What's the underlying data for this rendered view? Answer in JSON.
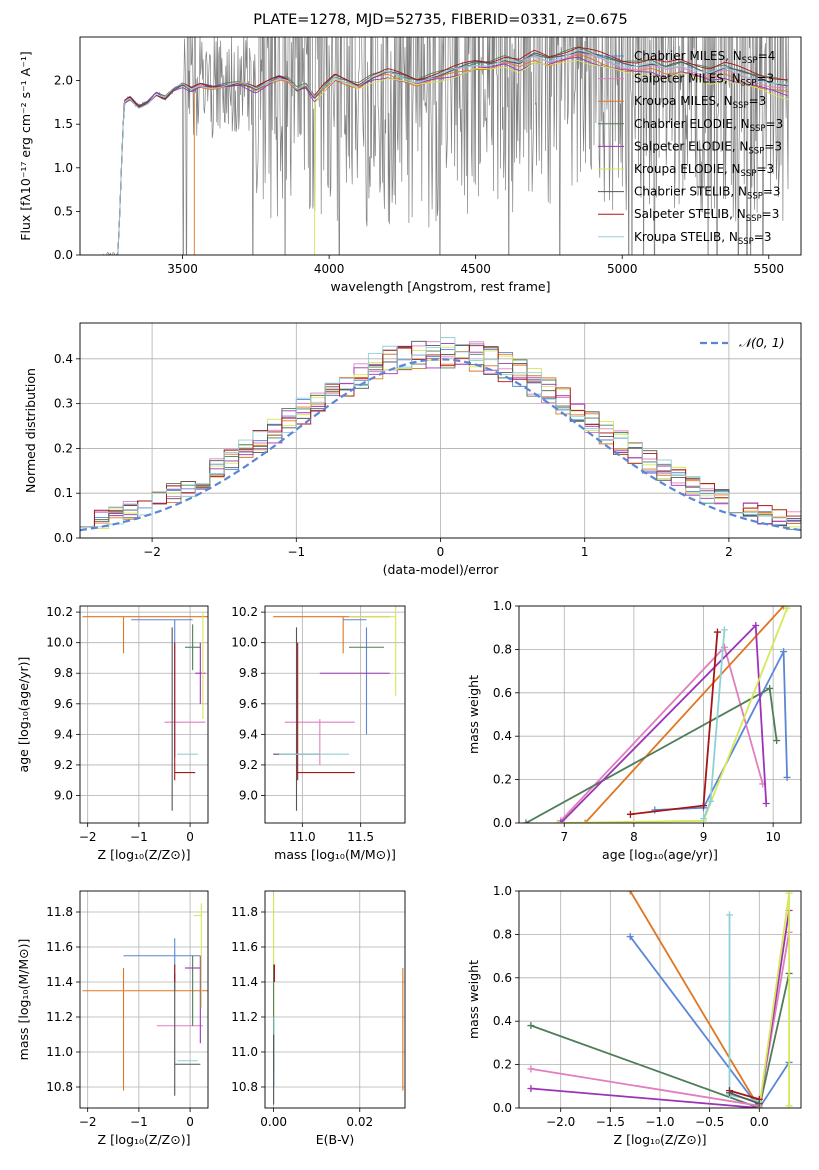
{
  "figure": {
    "title": "PLATE=1278, MJD=52735, FIBERID=0331, z=0.675"
  },
  "model_colors": {
    "Chabrier MILES": "#5b86d6",
    "Salpeter MILES": "#e07fbf",
    "Kroupa MILES": "#e07722",
    "Chabrier ELODIE": "#4f7d57",
    "Salpeter ELODIE": "#9b34b8",
    "Kroupa ELODIE": "#d6e85a",
    "Chabrier STELIB": "#555555",
    "Salpeter STELIB": "#a51616",
    "Kroupa STELIB": "#8fd0d8"
  },
  "chart_data": [
    {
      "type": "line",
      "title": "PLATE=1278, MJD=52735, FIBERID=0331, z=0.675",
      "xlabel": "wavelength [Angstrom, rest frame]",
      "ylabel": "Flux [fλ10⁻¹⁷ erg cm⁻² s⁻¹ A⁻¹]",
      "xlim": [
        3150,
        5610
      ],
      "ylim": [
        0,
        2.5
      ],
      "xticks": [
        3500,
        4000,
        4500,
        5000,
        5500
      ],
      "yticks": [
        0.0,
        0.5,
        1.0,
        1.5,
        2.0
      ],
      "grid": false,
      "legend_position": "right",
      "data_range": [
        3225,
        5570
      ],
      "model_knots": {
        "x": [
          3225,
          3280,
          3300,
          3320,
          3350,
          3380,
          3410,
          3440,
          3470,
          3500,
          3530,
          3560,
          3600,
          3650,
          3700,
          3750,
          3800,
          3830,
          3860,
          3890,
          3920,
          3950,
          3980,
          4020,
          4060,
          4100,
          4150,
          4200,
          4250,
          4300,
          4350,
          4400,
          4450,
          4500,
          4550,
          4600,
          4650,
          4700,
          4750,
          4800,
          4850,
          4900,
          4950,
          5000,
          5050,
          5100,
          5150,
          5200,
          5250,
          5300,
          5350,
          5400,
          5450,
          5500,
          5570
        ],
        "y": [
          0,
          0,
          1.75,
          1.8,
          1.7,
          1.75,
          1.85,
          1.8,
          1.9,
          1.95,
          1.9,
          1.95,
          1.93,
          1.95,
          1.97,
          1.9,
          2.0,
          2.05,
          2.02,
          1.9,
          1.95,
          1.8,
          1.92,
          2.05,
          2.0,
          1.95,
          2.05,
          2.1,
          2.05,
          2.0,
          2.05,
          2.1,
          2.15,
          2.2,
          2.2,
          2.25,
          2.2,
          2.3,
          2.25,
          2.3,
          2.35,
          2.3,
          2.25,
          2.2,
          2.18,
          2.2,
          2.15,
          2.2,
          2.15,
          2.1,
          2.15,
          2.1,
          2.05,
          2.0,
          1.95
        ]
      },
      "model_offsets": [
        0.0,
        -0.05,
        -0.1,
        0.03,
        -0.12,
        -0.15,
        0.0,
        0.05,
        -0.02
      ],
      "model_cuts": [
        {
          "model": "Chabrier MILES",
          "range": [
            3225,
            5570
          ]
        },
        {
          "model": "Salpeter MILES",
          "range": [
            3225,
            5570
          ]
        },
        {
          "model": "Kroupa MILES",
          "range": [
            3540,
            5570
          ]
        },
        {
          "model": "Chabrier ELODIE",
          "range": [
            3225,
            5570
          ]
        },
        {
          "model": "Salpeter ELODIE",
          "range": [
            3225,
            5570
          ]
        },
        {
          "model": "Kroupa ELODIE",
          "range": [
            3950,
            5570
          ]
        },
        {
          "model": "Chabrier STELIB",
          "range": [
            3225,
            5570
          ]
        },
        {
          "model": "Salpeter STELIB",
          "range": [
            3225,
            5570
          ]
        },
        {
          "model": "Kroupa STELIB",
          "range": [
            3225,
            5570
          ]
        }
      ],
      "legend": [
        {
          "label": "Chabrier MILES, N",
          "sub": "SSP",
          "suffix": "=4",
          "model": "Chabrier MILES"
        },
        {
          "label": "Salpeter MILES, N",
          "sub": "SSP",
          "suffix": "=3",
          "model": "Salpeter MILES"
        },
        {
          "label": "Kroupa MILES, N",
          "sub": "SSP",
          "suffix": "=3",
          "model": "Kroupa MILES"
        },
        {
          "label": "Chabrier ELODIE, N",
          "sub": "SSP",
          "suffix": "=3",
          "model": "Chabrier ELODIE"
        },
        {
          "label": "Salpeter ELODIE, N",
          "sub": "SSP",
          "suffix": "=3",
          "model": "Salpeter ELODIE"
        },
        {
          "label": "Kroupa ELODIE, N",
          "sub": "SSP",
          "suffix": "=3",
          "model": "Kroupa ELODIE"
        },
        {
          "label": "Chabrier STELIB, N",
          "sub": "SSP",
          "suffix": "=3",
          "model": "Chabrier STELIB"
        },
        {
          "label": "Salpeter STELIB, N",
          "sub": "SSP",
          "suffix": "=3",
          "model": "Salpeter STELIB"
        },
        {
          "label": "Kroupa STELIB, N",
          "sub": "SSP",
          "suffix": "=3",
          "model": "Kroupa STELIB"
        }
      ]
    },
    {
      "type": "histogram",
      "xlabel": "(data-model)/error",
      "ylabel": "Normed distribution",
      "xlim": [
        -2.5,
        2.5
      ],
      "ylim": [
        0,
        0.48
      ],
      "xticks": [
        -2,
        -1,
        0,
        1,
        2
      ],
      "yticks": [
        0.0,
        0.1,
        0.2,
        0.3,
        0.4
      ],
      "grid": true,
      "legend_position": "top-right",
      "bins": [
        -2.5,
        2.5,
        50
      ],
      "reference_label": "𝒩(0, 1)",
      "reference_color": "#5b86d6",
      "hist_seeds": [
        3,
        7,
        11,
        13,
        17,
        19,
        23,
        29,
        31
      ],
      "hist_amplitude": 0.035
    },
    {
      "type": "errorbar",
      "xlabel": "Z [log₁₀(Z/Z⊙)]",
      "ylabel": "age  [log₁₀(age/yr)]",
      "xlim": [
        -2.15,
        0.35
      ],
      "ylim": [
        8.82,
        10.24
      ],
      "xticks": [
        -2,
        -1,
        0
      ],
      "yticks": [
        9.0,
        9.2,
        9.4,
        9.6,
        9.8,
        10.0,
        10.2
      ],
      "grid": true,
      "points": [
        {
          "model": "Chabrier MILES",
          "x": -0.55,
          "xerr": 0.6,
          "y": 10.15,
          "yerr": 0.0
        },
        {
          "model": "Chabrier MILES",
          "x": -0.3,
          "xerr": 0.0,
          "y": 9.7,
          "yerr": 0.45
        },
        {
          "model": "Kroupa MILES",
          "x": -0.8,
          "xerr": 1.3,
          "y": 10.17,
          "yerr": 0.0
        },
        {
          "model": "Kroupa MILES",
          "x": -1.3,
          "xerr": 0.0,
          "y": 10.05,
          "yerr": 0.12
        },
        {
          "model": "Salpeter MILES",
          "x": -0.1,
          "xerr": 0.4,
          "y": 9.48,
          "yerr": 0.0
        },
        {
          "model": "Chabrier ELODIE",
          "x": 0.05,
          "xerr": 0.15,
          "y": 9.97,
          "yerr": 0.15
        },
        {
          "model": "Salpeter ELODIE",
          "x": 0.2,
          "xerr": 0.1,
          "y": 9.8,
          "yerr": 0.2
        },
        {
          "model": "Kroupa ELODIE",
          "x": 0.25,
          "xerr": 0.0,
          "y": 9.85,
          "yerr": 0.35
        },
        {
          "model": "Chabrier STELIB",
          "x": -0.35,
          "xerr": 0.0,
          "y": 9.5,
          "yerr": 0.6
        },
        {
          "model": "Salpeter STELIB",
          "x": -0.3,
          "xerr": 0.0,
          "y": 9.55,
          "yerr": 0.45
        },
        {
          "model": "Salpeter STELIB",
          "x": -0.1,
          "xerr": 0.2,
          "y": 9.15,
          "yerr": 0.0
        },
        {
          "model": "Kroupa STELIB",
          "x": -0.05,
          "xerr": 0.2,
          "y": 9.27,
          "yerr": 0.0
        }
      ]
    },
    {
      "type": "errorbar",
      "xlabel": "mass [log₁₀(M/M⊙)]",
      "ylabel": "",
      "xlim": [
        10.68,
        11.88
      ],
      "ylim": [
        8.82,
        10.24
      ],
      "xticks": [
        11.0,
        11.5
      ],
      "yticks": [
        9.0,
        9.2,
        9.4,
        9.6,
        9.8,
        10.0,
        10.2
      ],
      "grid": true,
      "points": [
        {
          "model": "Kroupa MILES",
          "x": 11.25,
          "xerr": 0.5,
          "y": 10.17,
          "yerr": 0.0
        },
        {
          "model": "Kroupa MILES",
          "x": 11.35,
          "xerr": 0.0,
          "y": 10.05,
          "yerr": 0.12
        },
        {
          "model": "Chabrier MILES",
          "x": 11.55,
          "xerr": 0.0,
          "y": 9.75,
          "yerr": 0.35
        },
        {
          "model": "Chabrier MILES",
          "x": 11.45,
          "xerr": 0.1,
          "y": 10.15,
          "yerr": 0.0
        },
        {
          "model": "Salpeter MILES",
          "x": 11.15,
          "xerr": 0.3,
          "y": 9.48,
          "yerr": 0.0
        },
        {
          "model": "Salpeter MILES",
          "x": 11.15,
          "xerr": 0.0,
          "y": 9.35,
          "yerr": 0.15
        },
        {
          "model": "Chabrier ELODIE",
          "x": 11.55,
          "xerr": 0.15,
          "y": 9.97,
          "yerr": 0.0
        },
        {
          "model": "Salpeter ELODIE",
          "x": 11.45,
          "xerr": 0.3,
          "y": 9.8,
          "yerr": 0.0
        },
        {
          "model": "Kroupa ELODIE",
          "x": 11.8,
          "xerr": 0.0,
          "y": 9.95,
          "yerr": 0.3
        },
        {
          "model": "Kroupa ELODIE",
          "x": 11.6,
          "xerr": 0.2,
          "y": 10.17,
          "yerr": 0.0
        },
        {
          "model": "Chabrier STELIB",
          "x": 10.95,
          "xerr": 0.0,
          "y": 9.5,
          "yerr": 0.6
        },
        {
          "model": "Chabrier STELIB",
          "x": 10.95,
          "xerr": 0.2,
          "y": 9.27,
          "yerr": 0.0
        },
        {
          "model": "Salpeter STELIB",
          "x": 10.96,
          "xerr": 0.0,
          "y": 9.55,
          "yerr": 0.45
        },
        {
          "model": "Salpeter STELIB",
          "x": 11.2,
          "xerr": 0.25,
          "y": 9.15,
          "yerr": 0.0
        },
        {
          "model": "Kroupa STELIB",
          "x": 11.1,
          "xerr": 0.3,
          "y": 9.27,
          "yerr": 0.0
        }
      ]
    },
    {
      "type": "line",
      "xlabel": "age  [log₁₀(age/yr)]",
      "ylabel": "mass weight",
      "xlim": [
        6.35,
        10.4
      ],
      "ylim": [
        0,
        1
      ],
      "xticks": [
        7,
        8,
        9,
        10
      ],
      "yticks": [
        0.0,
        0.2,
        0.4,
        0.6,
        0.8,
        1.0
      ],
      "grid": true,
      "series": [
        {
          "model": "Chabrier MILES",
          "x": [
            8.3,
            9.0,
            10.15,
            10.2
          ],
          "y": [
            0.06,
            0.07,
            0.79,
            0.21
          ]
        },
        {
          "model": "Salpeter MILES",
          "x": [
            6.95,
            9.3,
            9.85
          ],
          "y": [
            0.01,
            0.81,
            0.18
          ]
        },
        {
          "model": "Kroupa MILES",
          "x": [
            7.3,
            10.15
          ],
          "y": [
            0.0,
            1.0
          ]
        },
        {
          "model": "Chabrier ELODIE",
          "x": [
            6.45,
            9.95,
            10.05
          ],
          "y": [
            0.0,
            0.62,
            0.38
          ]
        },
        {
          "model": "Salpeter ELODIE",
          "x": [
            6.95,
            9.75,
            9.9
          ],
          "y": [
            0.0,
            0.91,
            0.09
          ]
        },
        {
          "model": "Kroupa ELODIE",
          "x": [
            6.9,
            9.0,
            10.2
          ],
          "y": [
            0.0,
            0.01,
            0.99
          ]
        },
        {
          "model": "Salpeter STELIB",
          "x": [
            7.95,
            9.0,
            9.2
          ],
          "y": [
            0.04,
            0.08,
            0.88
          ]
        },
        {
          "model": "Kroupa STELIB",
          "x": [
            9.0,
            9.1,
            9.3
          ],
          "y": [
            0.02,
            0.1,
            0.89
          ]
        }
      ]
    },
    {
      "type": "errorbar",
      "xlabel": "Z [log₁₀(Z/Z⊙)]",
      "ylabel": "mass [log₁₀(M/M⊙)]",
      "xlim": [
        -2.15,
        0.35
      ],
      "ylim": [
        10.68,
        11.92
      ],
      "xticks": [
        -2,
        -1,
        0
      ],
      "yticks": [
        10.8,
        11.0,
        11.2,
        11.4,
        11.6,
        11.8
      ],
      "grid": true,
      "points": [
        {
          "model": "Chabrier MILES",
          "x": -0.55,
          "xerr": 0.75,
          "y": 11.55,
          "yerr": 0.0
        },
        {
          "model": "Chabrier MILES",
          "x": -0.3,
          "xerr": 0.0,
          "y": 11.5,
          "yerr": 0.15
        },
        {
          "model": "Kroupa MILES",
          "x": -0.8,
          "xerr": 1.3,
          "y": 11.35,
          "yerr": 0.0
        },
        {
          "model": "Kroupa MILES",
          "x": -1.3,
          "xerr": 0.0,
          "y": 11.13,
          "yerr": 0.35
        },
        {
          "model": "Salpeter MILES",
          "x": -0.2,
          "xerr": 0.45,
          "y": 11.15,
          "yerr": 0.0
        },
        {
          "model": "Chabrier ELODIE",
          "x": 0.05,
          "xerr": 0.0,
          "y": 11.35,
          "yerr": 0.2
        },
        {
          "model": "Salpeter ELODIE",
          "x": 0.2,
          "xerr": 0.0,
          "y": 11.3,
          "yerr": 0.25
        },
        {
          "model": "Salpeter ELODIE",
          "x": 0.05,
          "xerr": 0.15,
          "y": 11.48,
          "yerr": 0.0
        },
        {
          "model": "Kroupa ELODIE",
          "x": 0.22,
          "xerr": 0.0,
          "y": 11.55,
          "yerr": 0.3
        },
        {
          "model": "Kroupa ELODIE",
          "x": 0.15,
          "xerr": 0.08,
          "y": 11.78,
          "yerr": 0.0
        },
        {
          "model": "Chabrier STELIB",
          "x": -0.3,
          "xerr": 0.0,
          "y": 11.1,
          "yerr": 0.35
        },
        {
          "model": "Chabrier STELIB",
          "x": -0.05,
          "xerr": 0.25,
          "y": 10.93,
          "yerr": 0.0
        },
        {
          "model": "Salpeter STELIB",
          "x": -0.3,
          "xerr": 0.0,
          "y": 11.45,
          "yerr": 0.05
        },
        {
          "model": "Kroupa STELIB",
          "x": -0.05,
          "xerr": 0.2,
          "y": 10.95,
          "yerr": 0.0
        }
      ]
    },
    {
      "type": "errorbar",
      "xlabel": "E(B-V)",
      "ylabel": "",
      "xlim": [
        -0.002,
        0.0305
      ],
      "ylim": [
        10.68,
        11.92
      ],
      "xticks": [
        0.0,
        0.02
      ],
      "yticks": [
        10.8,
        11.0,
        11.2,
        11.4,
        11.6,
        11.8
      ],
      "grid": true,
      "points": [
        {
          "model": "Kroupa ELODIE",
          "x": 0.0,
          "xerr": 0.0,
          "y": 11.5,
          "yerr": 0.4
        },
        {
          "model": "Chabrier ELODIE",
          "x": 0.0,
          "xerr": 0.0,
          "y": 11.2,
          "yerr": 0.3
        },
        {
          "model": "Salpeter STELIB",
          "x": 0.0002,
          "xerr": 0.0,
          "y": 11.45,
          "yerr": 0.05
        },
        {
          "model": "Kroupa STELIB",
          "x": 0.0001,
          "xerr": 0.0,
          "y": 11.0,
          "yerr": 0.2
        },
        {
          "model": "Chabrier STELIB",
          "x": 0.0,
          "xerr": 0.0,
          "y": 10.9,
          "yerr": 0.2
        },
        {
          "model": "Kroupa MILES",
          "x": 0.03,
          "xerr": 0.0,
          "y": 11.13,
          "yerr": 0.35
        }
      ]
    },
    {
      "type": "line",
      "xlabel": "Z [log₁₀(Z/Z⊙)]",
      "ylabel": "mass weight",
      "xlim": [
        -2.42,
        0.42
      ],
      "ylim": [
        0,
        1
      ],
      "xticks": [
        -2.0,
        -1.5,
        -1.0,
        -0.5,
        0.0
      ],
      "yticks": [
        0.0,
        0.2,
        0.4,
        0.6,
        0.8,
        1.0
      ],
      "grid": true,
      "series": [
        {
          "model": "Kroupa MILES",
          "x": [
            -1.3,
            0.0
          ],
          "y": [
            1.0,
            0.0
          ]
        },
        {
          "model": "Chabrier MILES",
          "x": [
            -1.3,
            0.0,
            0.3
          ],
          "y": [
            0.79,
            0.0,
            0.21
          ]
        },
        {
          "model": "Chabrier ELODIE",
          "x": [
            -2.3,
            0.0,
            0.3
          ],
          "y": [
            0.38,
            0.0,
            0.62
          ]
        },
        {
          "model": "Salpeter MILES",
          "x": [
            -2.3,
            0.0,
            0.3
          ],
          "y": [
            0.18,
            0.01,
            0.81
          ]
        },
        {
          "model": "Salpeter ELODIE",
          "x": [
            -2.3,
            0.0,
            0.3
          ],
          "y": [
            0.09,
            0.0,
            0.91
          ]
        },
        {
          "model": "Kroupa ELODIE",
          "x": [
            0.3,
            0.3,
            0.0
          ],
          "y": [
            0.01,
            0.99,
            0.0
          ]
        },
        {
          "model": "Kroupa STELIB",
          "x": [
            -0.3,
            -0.3,
            0.0
          ],
          "y": [
            0.89,
            0.06,
            0.03
          ]
        },
        {
          "model": "Salpeter STELIB",
          "x": [
            -0.3,
            0.0
          ],
          "y": [
            0.08,
            0.04
          ]
        },
        {
          "model": "Chabrier STELIB",
          "x": [
            -0.3,
            0.0
          ],
          "y": [
            0.07,
            0.02
          ]
        }
      ]
    }
  ]
}
